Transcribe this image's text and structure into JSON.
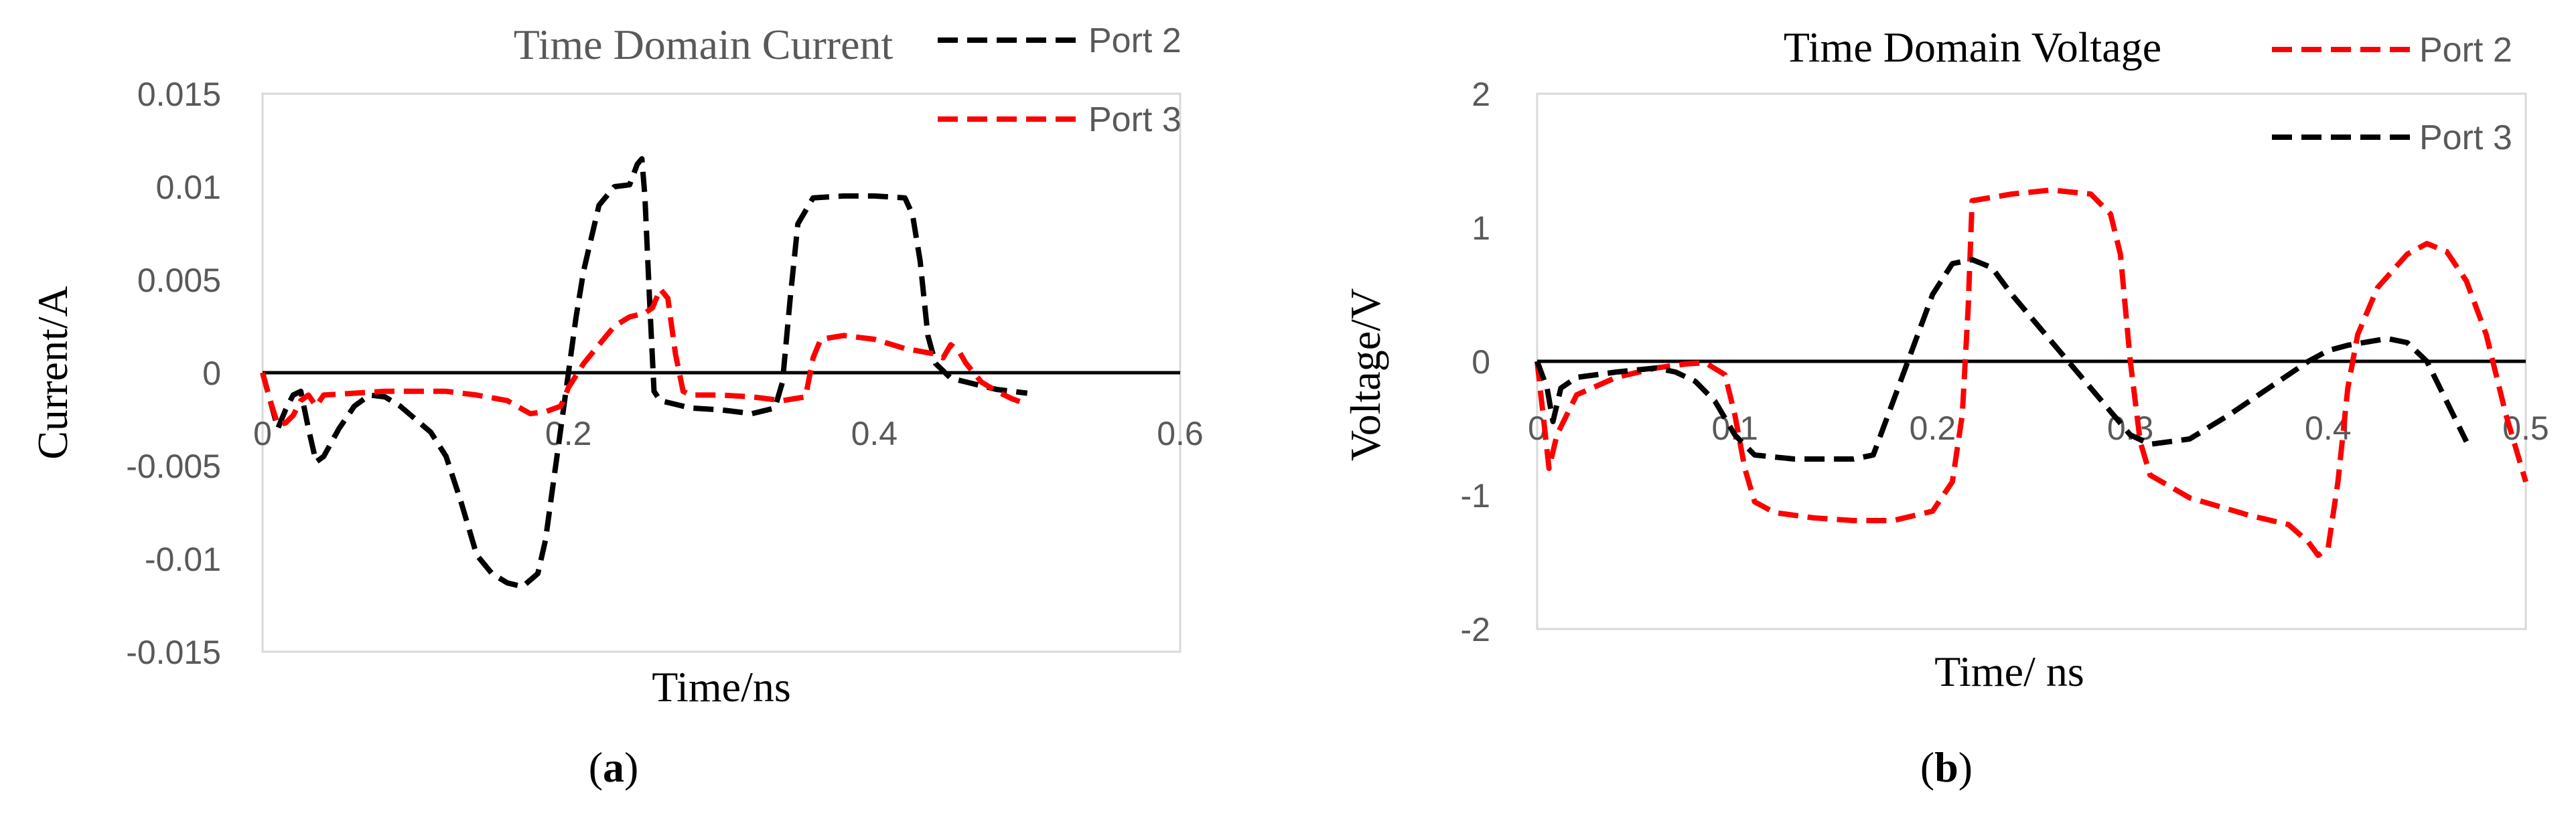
{
  "chart_data": [
    {
      "type": "line",
      "panel_label": "a",
      "title": "Time Domain Current",
      "xlabel": "Time/ns",
      "ylabel": "Current/A",
      "xlim": [
        0,
        0.6
      ],
      "ylim": [
        -0.015,
        0.015
      ],
      "x_ticks": [
        0,
        0.2,
        0.4,
        0.6
      ],
      "x_tick_labels": [
        "0",
        "0.2",
        "0.4",
        "0.6"
      ],
      "y_ticks": [
        0.015,
        0.01,
        0.005,
        0,
        -0.005,
        -0.01,
        -0.015
      ],
      "y_tick_labels": [
        "0.015",
        "0.01",
        "0.005",
        "0",
        "-0.005",
        "-0.01",
        "-0.015"
      ],
      "grid": false,
      "legend_position": "top-right",
      "series": [
        {
          "name": "Port 2",
          "color": "#000000",
          "dash": "dashed",
          "points": [
            [
              0,
              0
            ],
            [
              0.005,
              -0.0015
            ],
            [
              0.01,
              -0.003
            ],
            [
              0.015,
              -0.002
            ],
            [
              0.02,
              -0.0012
            ],
            [
              0.025,
              -0.001
            ],
            [
              0.03,
              -0.003
            ],
            [
              0.035,
              -0.0048
            ],
            [
              0.04,
              -0.0045
            ],
            [
              0.05,
              -0.003
            ],
            [
              0.06,
              -0.0018
            ],
            [
              0.07,
              -0.0012
            ],
            [
              0.08,
              -0.0013
            ],
            [
              0.09,
              -0.0018
            ],
            [
              0.1,
              -0.0025
            ],
            [
              0.11,
              -0.0032
            ],
            [
              0.12,
              -0.0045
            ],
            [
              0.13,
              -0.007
            ],
            [
              0.14,
              -0.0098
            ],
            [
              0.15,
              -0.0108
            ],
            [
              0.16,
              -0.0113
            ],
            [
              0.17,
              -0.0115
            ],
            [
              0.18,
              -0.0108
            ],
            [
              0.185,
              -0.009
            ],
            [
              0.19,
              -0.006
            ],
            [
              0.195,
              -0.003
            ],
            [
              0.2,
              0
            ],
            [
              0.205,
              0.003
            ],
            [
              0.21,
              0.0055
            ],
            [
              0.22,
              0.009
            ],
            [
              0.23,
              0.01
            ],
            [
              0.24,
              0.0101
            ],
            [
              0.245,
              0.0112
            ],
            [
              0.248,
              0.0115
            ],
            [
              0.25,
              0.0095
            ],
            [
              0.253,
              0.004
            ],
            [
              0.256,
              -0.001
            ],
            [
              0.26,
              -0.0015
            ],
            [
              0.28,
              -0.0019
            ],
            [
              0.3,
              -0.002
            ],
            [
              0.32,
              -0.0022
            ],
            [
              0.335,
              -0.0019
            ],
            [
              0.34,
              -0.0005
            ],
            [
              0.345,
              0.004
            ],
            [
              0.35,
              0.008
            ],
            [
              0.36,
              0.0094
            ],
            [
              0.38,
              0.0095
            ],
            [
              0.4,
              0.0095
            ],
            [
              0.42,
              0.0094
            ],
            [
              0.425,
              0.0085
            ],
            [
              0.43,
              0.006
            ],
            [
              0.435,
              0.002
            ],
            [
              0.44,
              0.0005
            ],
            [
              0.45,
              -0.0003
            ],
            [
              0.46,
              -0.0005
            ],
            [
              0.47,
              -0.0007
            ],
            [
              0.48,
              -0.0009
            ],
            [
              0.5,
              -0.0011
            ]
          ]
        },
        {
          "name": "Port 3",
          "color": "#ff0000",
          "dash": "dashed",
          "points": [
            [
              0,
              0
            ],
            [
              0.005,
              -0.0015
            ],
            [
              0.01,
              -0.0028
            ],
            [
              0.015,
              -0.0027
            ],
            [
              0.02,
              -0.0023
            ],
            [
              0.025,
              -0.0015
            ],
            [
              0.03,
              -0.0012
            ],
            [
              0.035,
              -0.0018
            ],
            [
              0.04,
              -0.0012
            ],
            [
              0.06,
              -0.0011
            ],
            [
              0.08,
              -0.001
            ],
            [
              0.1,
              -0.001
            ],
            [
              0.12,
              -0.001
            ],
            [
              0.14,
              -0.0012
            ],
            [
              0.16,
              -0.0015
            ],
            [
              0.175,
              -0.0022
            ],
            [
              0.185,
              -0.0021
            ],
            [
              0.195,
              -0.0018
            ],
            [
              0.2,
              -0.0008
            ],
            [
              0.21,
              0.0005
            ],
            [
              0.22,
              0.0015
            ],
            [
              0.23,
              0.0025
            ],
            [
              0.24,
              0.003
            ],
            [
              0.25,
              0.0032
            ],
            [
              0.255,
              0.0035
            ],
            [
              0.26,
              0.0045
            ],
            [
              0.265,
              0.004
            ],
            [
              0.27,
              0.001
            ],
            [
              0.275,
              -0.001
            ],
            [
              0.28,
              -0.0012
            ],
            [
              0.3,
              -0.0012
            ],
            [
              0.32,
              -0.0013
            ],
            [
              0.34,
              -0.0015
            ],
            [
              0.355,
              -0.0013
            ],
            [
              0.36,
              0.0008
            ],
            [
              0.365,
              0.0018
            ],
            [
              0.38,
              0.002
            ],
            [
              0.4,
              0.0018
            ],
            [
              0.42,
              0.0013
            ],
            [
              0.44,
              0.001
            ],
            [
              0.445,
              0.0008
            ],
            [
              0.45,
              0.0015
            ],
            [
              0.455,
              0.0012
            ],
            [
              0.46,
              0.0005
            ],
            [
              0.47,
              -0.0005
            ],
            [
              0.48,
              -0.001
            ],
            [
              0.49,
              -0.0014
            ],
            [
              0.5,
              -0.0017
            ]
          ]
        }
      ]
    },
    {
      "type": "line",
      "panel_label": "b",
      "title": "Time Domain Voltage",
      "xlabel": "Time/ ns",
      "ylabel": "Voltage/V",
      "xlim": [
        0,
        0.5
      ],
      "ylim": [
        -2,
        2
      ],
      "x_ticks": [
        0,
        0.1,
        0.2,
        0.3,
        0.4,
        0.5
      ],
      "x_tick_labels": [
        "0",
        "0.1",
        "0.2",
        "0.3",
        "0.4",
        "0.5"
      ],
      "y_ticks": [
        2,
        1,
        0,
        -1,
        -2
      ],
      "y_tick_labels": [
        "2",
        "1",
        "0",
        "-1",
        "-2"
      ],
      "grid": false,
      "legend_position": "top-right",
      "series": [
        {
          "name": "Port 2",
          "color": "#ff0000",
          "dash": "dashed",
          "points": [
            [
              0,
              0
            ],
            [
              0.003,
              -0.4
            ],
            [
              0.006,
              -0.8
            ],
            [
              0.01,
              -0.55
            ],
            [
              0.02,
              -0.25
            ],
            [
              0.04,
              -0.12
            ],
            [
              0.06,
              -0.05
            ],
            [
              0.075,
              -0.02
            ],
            [
              0.085,
              -0.01
            ],
            [
              0.095,
              -0.1
            ],
            [
              0.1,
              -0.4
            ],
            [
              0.105,
              -0.8
            ],
            [
              0.11,
              -1.05
            ],
            [
              0.12,
              -1.13
            ],
            [
              0.14,
              -1.17
            ],
            [
              0.16,
              -1.19
            ],
            [
              0.18,
              -1.19
            ],
            [
              0.2,
              -1.12
            ],
            [
              0.21,
              -0.9
            ],
            [
              0.215,
              -0.4
            ],
            [
              0.218,
              0.4
            ],
            [
              0.22,
              1.2
            ],
            [
              0.24,
              1.25
            ],
            [
              0.26,
              1.28
            ],
            [
              0.28,
              1.25
            ],
            [
              0.29,
              1.1
            ],
            [
              0.295,
              0.8
            ],
            [
              0.3,
              0.0
            ],
            [
              0.305,
              -0.6
            ],
            [
              0.31,
              -0.85
            ],
            [
              0.33,
              -1.02
            ],
            [
              0.36,
              -1.15
            ],
            [
              0.38,
              -1.22
            ],
            [
              0.39,
              -1.35
            ],
            [
              0.395,
              -1.45
            ],
            [
              0.4,
              -1.4
            ],
            [
              0.405,
              -0.9
            ],
            [
              0.41,
              -0.2
            ],
            [
              0.415,
              0.2
            ],
            [
              0.425,
              0.55
            ],
            [
              0.44,
              0.8
            ],
            [
              0.45,
              0.88
            ],
            [
              0.46,
              0.82
            ],
            [
              0.47,
              0.6
            ],
            [
              0.48,
              0.2
            ],
            [
              0.49,
              -0.4
            ],
            [
              0.5,
              -0.9
            ]
          ]
        },
        {
          "name": "Port 3",
          "color": "#000000",
          "dash": "dashed",
          "points": [
            [
              0,
              0
            ],
            [
              0.005,
              -0.2
            ],
            [
              0.008,
              -0.45
            ],
            [
              0.012,
              -0.2
            ],
            [
              0.02,
              -0.12
            ],
            [
              0.04,
              -0.08
            ],
            [
              0.06,
              -0.05
            ],
            [
              0.07,
              -0.08
            ],
            [
              0.08,
              -0.15
            ],
            [
              0.09,
              -0.3
            ],
            [
              0.1,
              -0.55
            ],
            [
              0.11,
              -0.7
            ],
            [
              0.13,
              -0.73
            ],
            [
              0.16,
              -0.73
            ],
            [
              0.17,
              -0.7
            ],
            [
              0.18,
              -0.3
            ],
            [
              0.19,
              0.1
            ],
            [
              0.2,
              0.5
            ],
            [
              0.21,
              0.73
            ],
            [
              0.22,
              0.76
            ],
            [
              0.23,
              0.7
            ],
            [
              0.24,
              0.5
            ],
            [
              0.26,
              0.15
            ],
            [
              0.28,
              -0.2
            ],
            [
              0.3,
              -0.55
            ],
            [
              0.31,
              -0.62
            ],
            [
              0.33,
              -0.58
            ],
            [
              0.35,
              -0.4
            ],
            [
              0.37,
              -0.2
            ],
            [
              0.39,
              0.0
            ],
            [
              0.4,
              0.08
            ],
            [
              0.41,
              0.12
            ],
            [
              0.43,
              0.17
            ],
            [
              0.44,
              0.14
            ],
            [
              0.45,
              0.0
            ],
            [
              0.46,
              -0.3
            ],
            [
              0.47,
              -0.6
            ]
          ]
        }
      ]
    }
  ]
}
